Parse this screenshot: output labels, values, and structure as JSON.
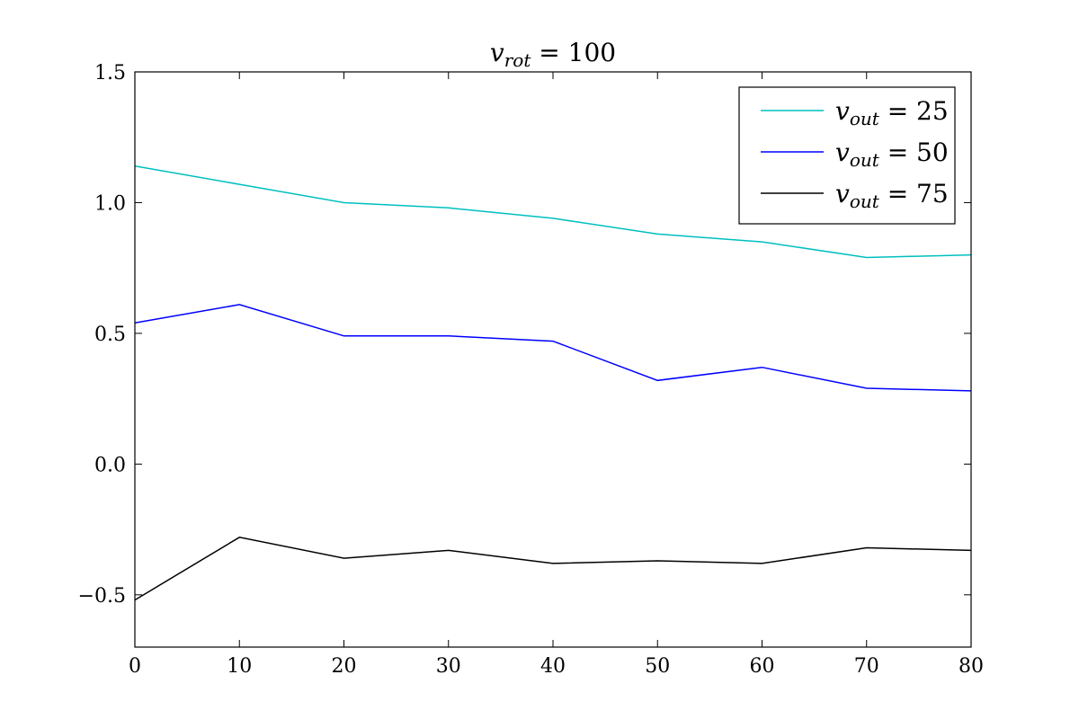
{
  "chart_data": {
    "type": "line",
    "title": {
      "var": "v",
      "sub": "rot",
      "rest": " = 100"
    },
    "xlabel": "",
    "ylabel": "",
    "x": [
      0,
      10,
      20,
      30,
      40,
      50,
      60,
      70,
      80
    ],
    "xlim": [
      0,
      80
    ],
    "ylim": [
      -0.7,
      1.5
    ],
    "xticks": [
      0,
      10,
      20,
      30,
      40,
      50,
      60,
      70,
      80
    ],
    "xtick_labels": [
      "0",
      "10",
      "20",
      "30",
      "40",
      "50",
      "60",
      "70",
      "80"
    ],
    "yticks": [
      -0.5,
      0.0,
      0.5,
      1.0,
      1.5
    ],
    "ytick_labels": [
      "−0.5",
      "0.0",
      "0.5",
      "1.0",
      "1.5"
    ],
    "grid": false,
    "legend_position": "top-right",
    "series": [
      {
        "label": {
          "var": "v",
          "sub": "out",
          "rest": " = 25"
        },
        "color": "#00BFBF",
        "values": [
          1.14,
          1.07,
          1.0,
          0.98,
          0.94,
          0.88,
          0.85,
          0.79,
          0.8
        ]
      },
      {
        "label": {
          "var": "v",
          "sub": "out",
          "rest": " = 50"
        },
        "color": "#0000FF",
        "values": [
          0.54,
          0.61,
          0.49,
          0.49,
          0.47,
          0.32,
          0.37,
          0.29,
          0.28
        ]
      },
      {
        "label": {
          "var": "v",
          "sub": "out",
          "rest": " = 75"
        },
        "color": "#000000",
        "values": [
          -0.52,
          -0.28,
          -0.36,
          -0.33,
          -0.38,
          -0.37,
          -0.38,
          -0.32,
          -0.33
        ]
      }
    ]
  }
}
